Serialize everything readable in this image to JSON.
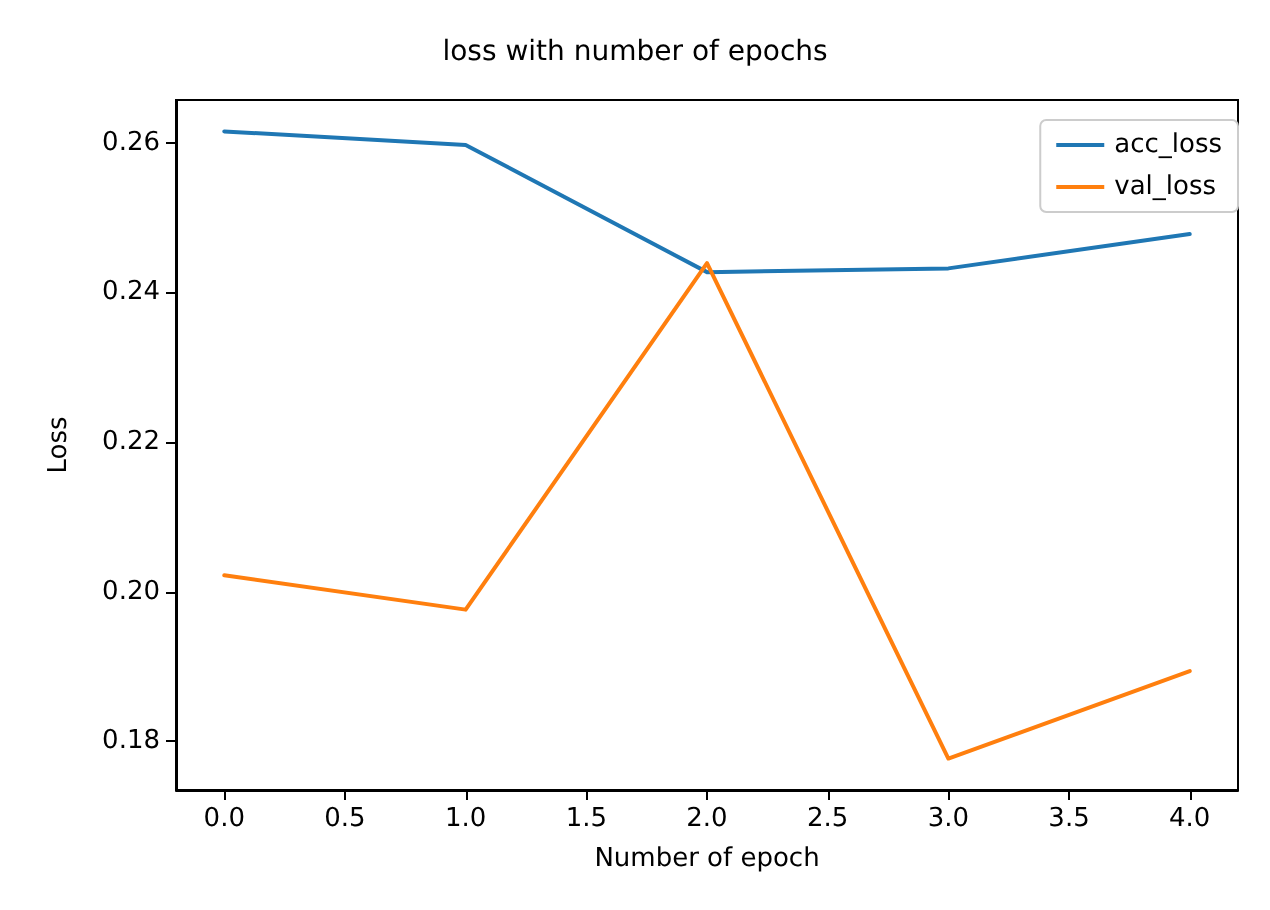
{
  "chart_data": {
    "type": "line",
    "title": "loss with number of epochs",
    "xlabel": "Number of epoch",
    "ylabel": "Loss",
    "x": [
      0,
      1,
      2,
      3,
      4
    ],
    "series": [
      {
        "name": "acc_loss",
        "color": "#1f77b4",
        "values": [
          0.2615,
          0.2597,
          0.2427,
          0.2432,
          0.2478
        ]
      },
      {
        "name": "val_loss",
        "color": "#ff7f0e",
        "values": [
          0.2022,
          0.1976,
          0.2439,
          0.1777,
          0.1894
        ]
      }
    ],
    "xlim": [
      -0.2,
      4.2
    ],
    "xticks": [
      {
        "value": 0,
        "label": "0.0"
      },
      {
        "value": 0.5,
        "label": "0.5"
      },
      {
        "value": 1,
        "label": "1.0"
      },
      {
        "value": 1.5,
        "label": "1.5"
      },
      {
        "value": 2,
        "label": "2.0"
      },
      {
        "value": 2.5,
        "label": "2.5"
      },
      {
        "value": 3,
        "label": "3.0"
      },
      {
        "value": 3.5,
        "label": "3.5"
      },
      {
        "value": 4,
        "label": "4.0"
      }
    ],
    "ylim": [
      0.1735,
      0.2657
    ],
    "yticks": [
      {
        "value": 0.18,
        "label": "0.18"
      },
      {
        "value": 0.2,
        "label": "0.20"
      },
      {
        "value": 0.22,
        "label": "0.22"
      },
      {
        "value": 0.24,
        "label": "0.24"
      },
      {
        "value": 0.26,
        "label": "0.26"
      }
    ],
    "legend": "top right",
    "grid": false,
    "marker": "none",
    "line_style": "solid"
  }
}
